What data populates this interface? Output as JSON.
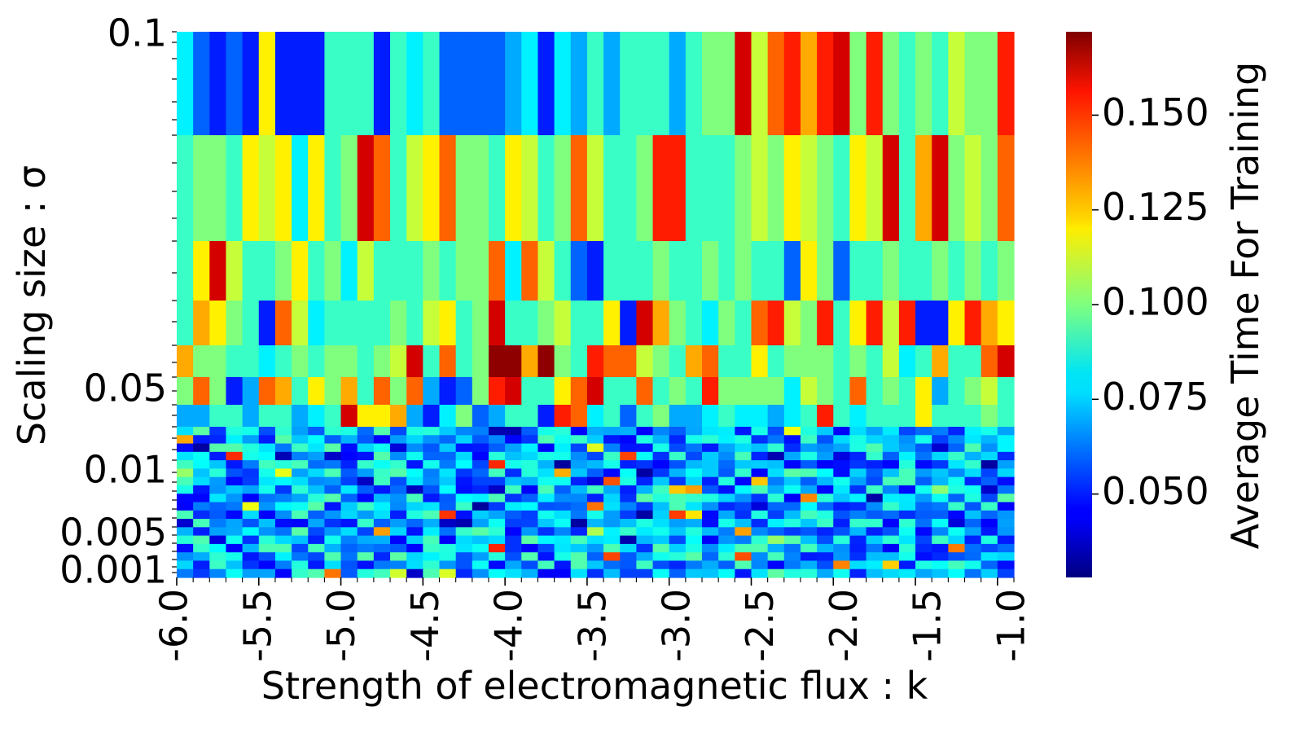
{
  "chart_data": {
    "type": "heatmap",
    "title": "",
    "xlabel": "Strength of electromagnetic flux : k",
    "ylabel": "Scaling size : σ",
    "colorbar_label": "Average Time For Training",
    "colormap": "jet",
    "xlim": [
      -6.0,
      -1.0
    ],
    "x_ticks": [
      -6.0,
      -5.5,
      -5.0,
      -4.5,
      -4.0,
      -3.5,
      -3.0,
      -2.5,
      -2.0,
      -1.5,
      -1.0
    ],
    "x_tick_labels": [
      "-6.0",
      "-5.5",
      "-5.0",
      "-4.5",
      "-4.0",
      "-3.5",
      "-3.0",
      "-2.5",
      "-2.0",
      "-1.5",
      "-1.0"
    ],
    "y_tick_labels": [
      "0.1",
      "0.05",
      "0.01",
      "0.005",
      "0.001"
    ],
    "value_range": [
      0.028,
      0.172
    ],
    "colorbar_ticks": [
      0.05,
      0.075,
      0.1,
      0.125,
      0.15
    ],
    "colorbar_tick_labels": [
      "0.050",
      "0.075",
      "0.100",
      "0.125",
      "0.150"
    ],
    "n_columns": 51,
    "rows": [
      {
        "sigma": "0.1",
        "values": [
          0.08,
          0.06,
          0.05,
          0.06,
          0.05,
          0.12,
          0.05,
          0.05,
          0.05,
          0.09,
          0.09,
          0.09,
          0.05,
          0.09,
          0.08,
          0.09,
          0.06,
          0.06,
          0.06,
          0.06,
          0.07,
          0.08,
          0.05,
          0.08,
          0.07,
          0.09,
          0.07,
          0.09,
          0.09,
          0.09,
          0.07,
          0.09,
          0.1,
          0.1,
          0.16,
          0.11,
          0.14,
          0.15,
          0.13,
          0.15,
          0.16,
          0.1,
          0.15,
          0.1,
          0.09,
          0.1,
          0.09,
          0.11,
          0.1,
          0.1,
          0.15
        ]
      },
      {
        "sigma": "",
        "values": [
          0.09,
          0.1,
          0.1,
          0.09,
          0.12,
          0.11,
          0.12,
          0.08,
          0.12,
          0.09,
          0.1,
          0.16,
          0.14,
          0.09,
          0.11,
          0.12,
          0.14,
          0.1,
          0.1,
          0.09,
          0.12,
          0.11,
          0.09,
          0.1,
          0.14,
          0.11,
          0.09,
          0.09,
          0.1,
          0.15,
          0.15,
          0.09,
          0.09,
          0.09,
          0.1,
          0.11,
          0.1,
          0.12,
          0.11,
          0.1,
          0.09,
          0.12,
          0.11,
          0.16,
          0.09,
          0.13,
          0.16,
          0.1,
          0.11,
          0.1,
          0.14
        ]
      },
      {
        "sigma": "",
        "values": [
          0.09,
          0.12,
          0.16,
          0.11,
          0.09,
          0.09,
          0.1,
          0.12,
          0.09,
          0.1,
          0.08,
          0.11,
          0.09,
          0.09,
          0.09,
          0.1,
          0.09,
          0.1,
          0.1,
          0.14,
          0.08,
          0.14,
          0.11,
          0.09,
          0.06,
          0.05,
          0.09,
          0.09,
          0.09,
          0.1,
          0.09,
          0.09,
          0.1,
          0.09,
          0.1,
          0.09,
          0.09,
          0.06,
          0.12,
          0.1,
          0.06,
          0.09,
          0.09,
          0.1,
          0.09,
          0.09,
          0.1,
          0.09,
          0.1,
          0.09,
          0.1
        ]
      },
      {
        "sigma": "",
        "values": [
          0.09,
          0.13,
          0.12,
          0.1,
          0.09,
          0.05,
          0.14,
          0.11,
          0.08,
          0.09,
          0.09,
          0.09,
          0.09,
          0.1,
          0.09,
          0.11,
          0.12,
          0.09,
          0.1,
          0.16,
          0.09,
          0.09,
          0.1,
          0.11,
          0.09,
          0.09,
          0.12,
          0.05,
          0.16,
          0.13,
          0.1,
          0.09,
          0.08,
          0.1,
          0.09,
          0.14,
          0.15,
          0.11,
          0.1,
          0.15,
          0.09,
          0.12,
          0.15,
          0.11,
          0.15,
          0.05,
          0.05,
          0.12,
          0.15,
          0.13,
          0.12
        ]
      },
      {
        "sigma": "",
        "values": [
          0.13,
          0.1,
          0.1,
          0.09,
          0.09,
          0.08,
          0.09,
          0.1,
          0.09,
          0.1,
          0.1,
          0.09,
          0.1,
          0.11,
          0.16,
          0.09,
          0.14,
          0.09,
          0.1,
          0.17,
          0.17,
          0.13,
          0.17,
          0.1,
          0.09,
          0.15,
          0.14,
          0.14,
          0.11,
          0.1,
          0.09,
          0.13,
          0.14,
          0.09,
          0.09,
          0.12,
          0.09,
          0.1,
          0.1,
          0.1,
          0.09,
          0.1,
          0.09,
          0.11,
          0.08,
          0.09,
          0.13,
          0.09,
          0.09,
          0.14,
          0.16
        ]
      },
      {
        "sigma": "0.05",
        "values": [
          0.1,
          0.14,
          0.1,
          0.05,
          0.07,
          0.14,
          0.13,
          0.09,
          0.12,
          0.1,
          0.13,
          0.09,
          0.14,
          0.1,
          0.14,
          0.07,
          0.05,
          0.06,
          0.1,
          0.15,
          0.16,
          0.09,
          0.09,
          0.12,
          0.14,
          0.16,
          0.09,
          0.09,
          0.14,
          0.09,
          0.1,
          0.09,
          0.15,
          0.1,
          0.1,
          0.1,
          0.1,
          0.08,
          0.11,
          0.1,
          0.09,
          0.14,
          0.09,
          0.1,
          0.09,
          0.12,
          0.07,
          0.09,
          0.1,
          0.11,
          0.09
        ]
      },
      {
        "sigma": "",
        "values": [
          0.07,
          0.07,
          0.09,
          0.09,
          0.07,
          0.09,
          0.09,
          0.07,
          0.08,
          0.09,
          0.16,
          0.12,
          0.12,
          0.13,
          0.07,
          0.05,
          0.08,
          0.1,
          0.06,
          0.07,
          0.09,
          0.09,
          0.05,
          0.15,
          0.14,
          0.08,
          0.09,
          0.06,
          0.09,
          0.1,
          0.07,
          0.07,
          0.08,
          0.09,
          0.08,
          0.08,
          0.07,
          0.08,
          0.09,
          0.15,
          0.09,
          0.08,
          0.09,
          0.09,
          0.09,
          0.12,
          0.09,
          0.09,
          0.09,
          0.1,
          0.09
        ]
      }
    ]
  }
}
